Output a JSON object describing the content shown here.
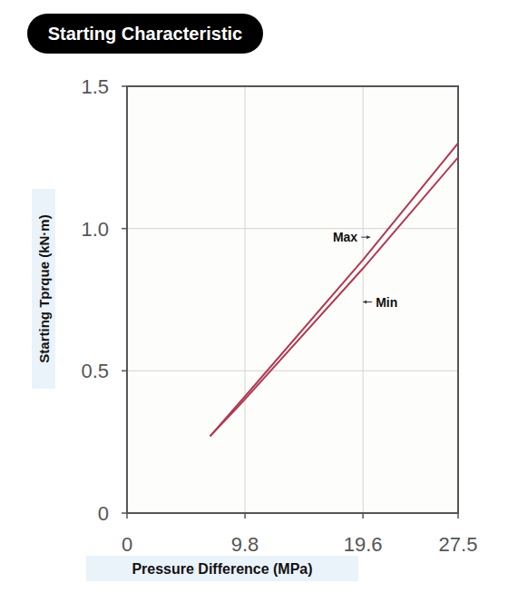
{
  "chart_data": {
    "type": "line",
    "title": "Starting Characteristic",
    "x_label": "Pressure Difference (MPa)",
    "y_label": "Starting Tprque (kN·m)",
    "x": [
      6.9,
      9.8,
      19.6,
      27.5
    ],
    "series": [
      {
        "name": "Max",
        "color": "#b03a52",
        "line_style": "solid",
        "values": [
          0.27,
          0.41,
          0.89,
          1.3
        ]
      },
      {
        "name": "Min",
        "color": "#b03a52",
        "line_style": "solid",
        "values": [
          0.27,
          0.4,
          0.86,
          1.25
        ]
      }
    ],
    "xlim": [
      0,
      27.5
    ],
    "ylim": [
      0,
      1.5
    ],
    "xticks": [
      0,
      9.8,
      19.6,
      27.5
    ],
    "yticks": [
      0,
      0.5,
      {
        "value": 1,
        "label": "1.0"
      },
      1.5
    ],
    "grid": true
  }
}
